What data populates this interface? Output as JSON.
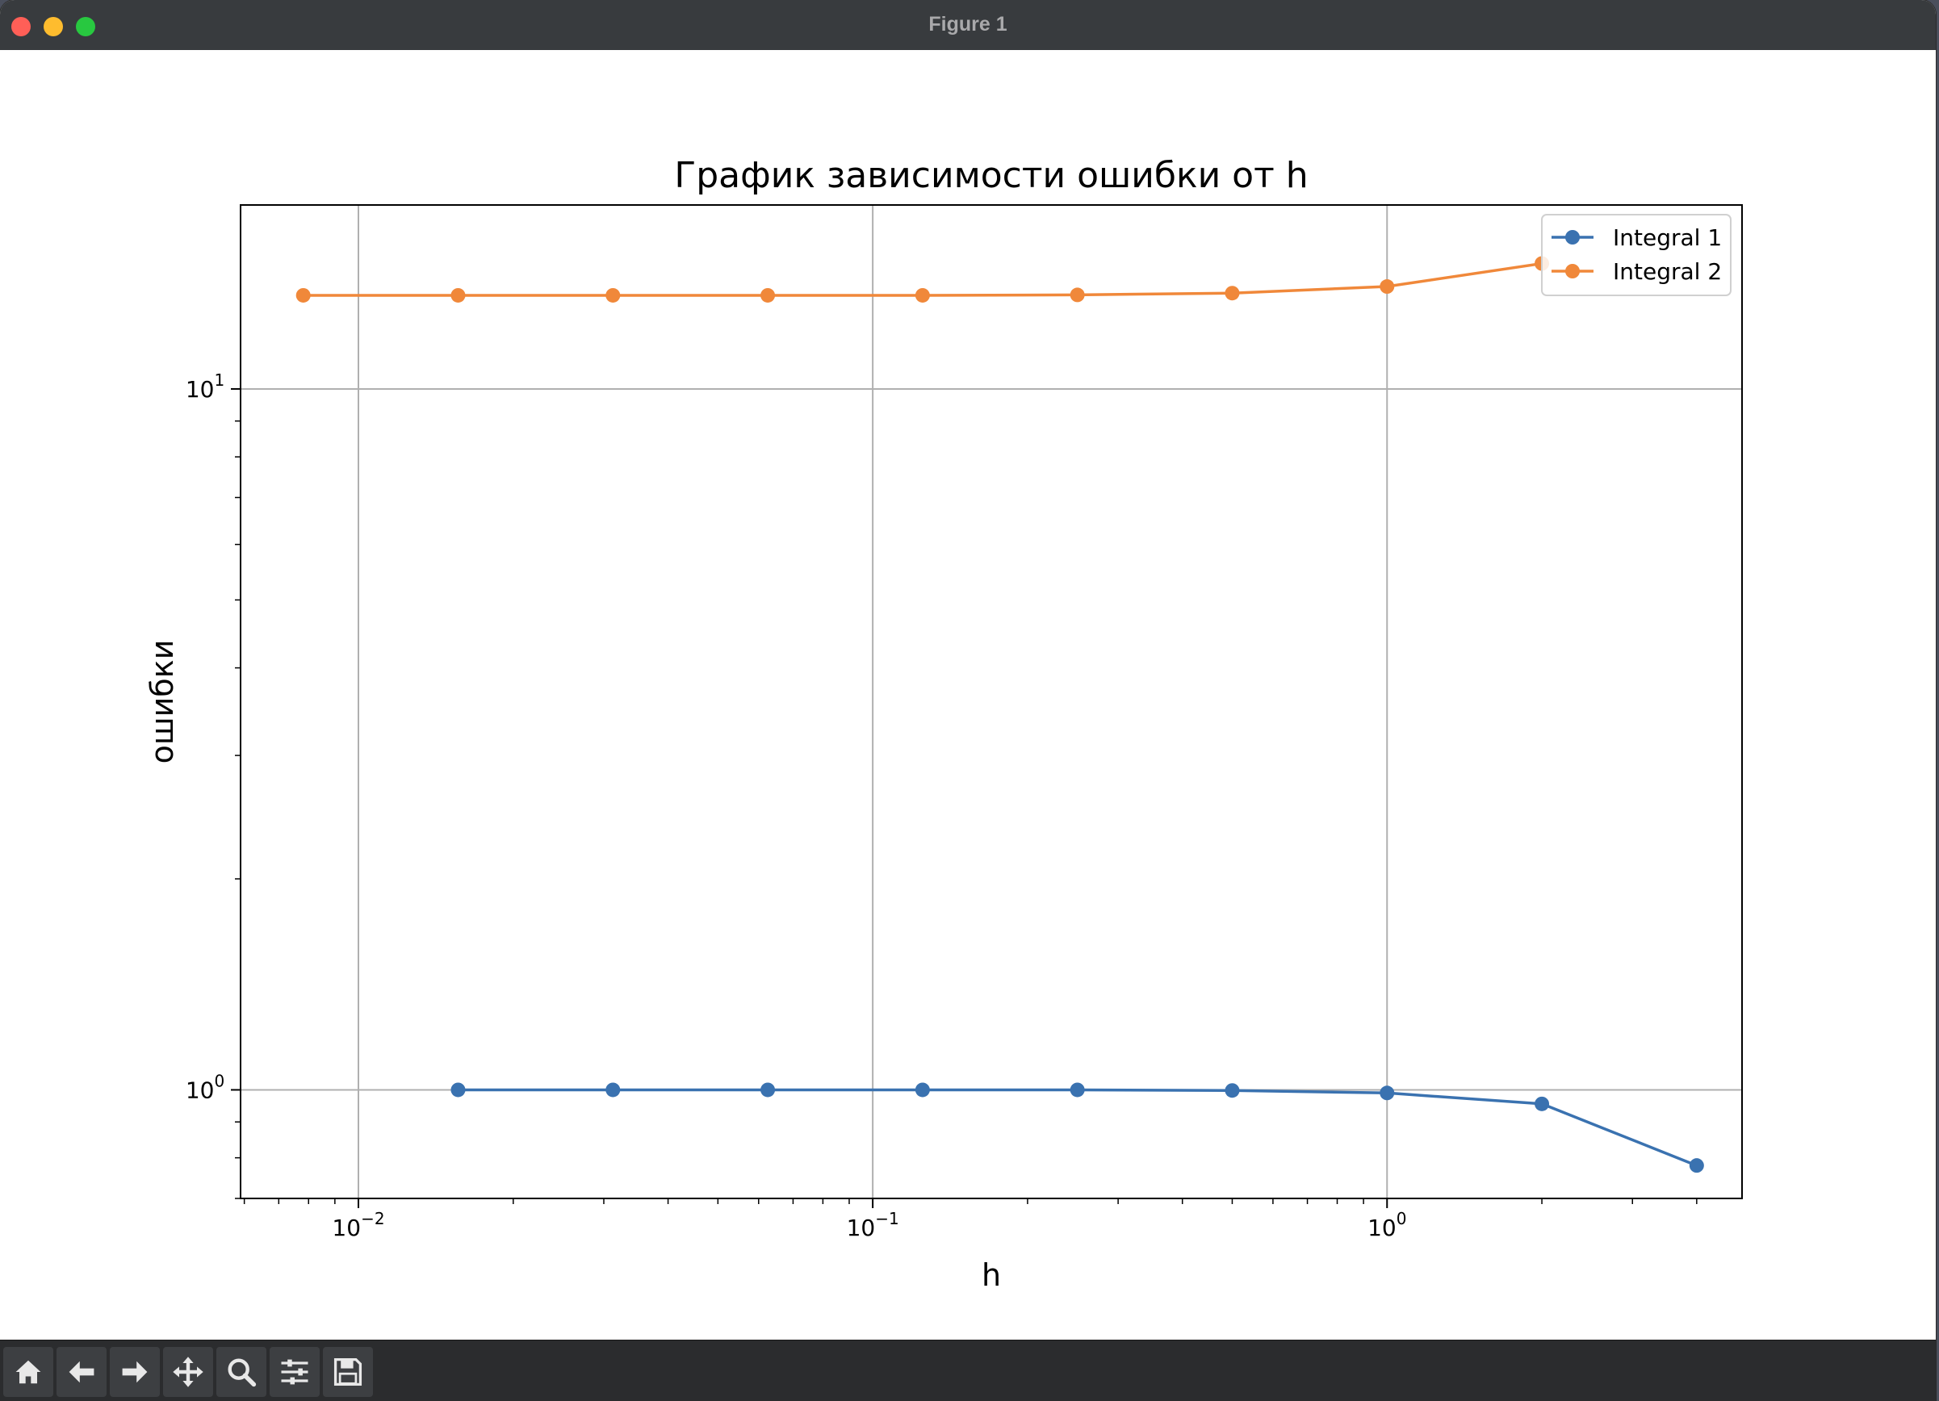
{
  "window": {
    "title": "Figure 1"
  },
  "toolbar": {
    "buttons": [
      {
        "name": "home-button",
        "icon": "home-icon"
      },
      {
        "name": "back-button",
        "icon": "arrow-left-icon"
      },
      {
        "name": "forward-button",
        "icon": "arrow-right-icon"
      },
      {
        "name": "pan-button",
        "icon": "move-icon"
      },
      {
        "name": "zoom-button",
        "icon": "magnifier-icon"
      },
      {
        "name": "configure-subplots-button",
        "icon": "sliders-icon"
      },
      {
        "name": "save-button",
        "icon": "floppy-disk-icon"
      }
    ]
  },
  "chart_data": {
    "type": "line",
    "title": "График зависимости ошибки от h",
    "xlabel": "h",
    "ylabel": "ошибки",
    "xscale": "log",
    "yscale": "log",
    "xlim": [
      0.0059,
      4.9
    ],
    "ylim": [
      0.7,
      18.3
    ],
    "xticks": [
      {
        "value": 0.01,
        "base": "10",
        "exp": "−2"
      },
      {
        "value": 0.1,
        "base": "10",
        "exp": "−1"
      },
      {
        "value": 1,
        "base": "10",
        "exp": "0"
      }
    ],
    "yticks": [
      {
        "value": 1,
        "base": "10",
        "exp": "0"
      },
      {
        "value": 10,
        "base": "10",
        "exp": "1"
      }
    ],
    "grid": true,
    "legend_position": "top-right",
    "series": [
      {
        "name": "Integral 1",
        "color": "#3a72b0",
        "x": [
          0.015625,
          0.03125,
          0.0625,
          0.125,
          0.25,
          0.5,
          1,
          2,
          4
        ],
        "y": [
          1.0,
          1.0,
          1.0,
          1.0,
          1.0,
          0.998,
          0.99,
          0.955,
          0.78
        ]
      },
      {
        "name": "Integral 2",
        "color": "#f0883a",
        "x": [
          0.0078125,
          0.015625,
          0.03125,
          0.0625,
          0.125,
          0.25,
          0.5,
          1,
          2
        ],
        "y": [
          13.6,
          13.6,
          13.6,
          13.6,
          13.6,
          13.62,
          13.7,
          14.0,
          15.1
        ]
      }
    ]
  }
}
